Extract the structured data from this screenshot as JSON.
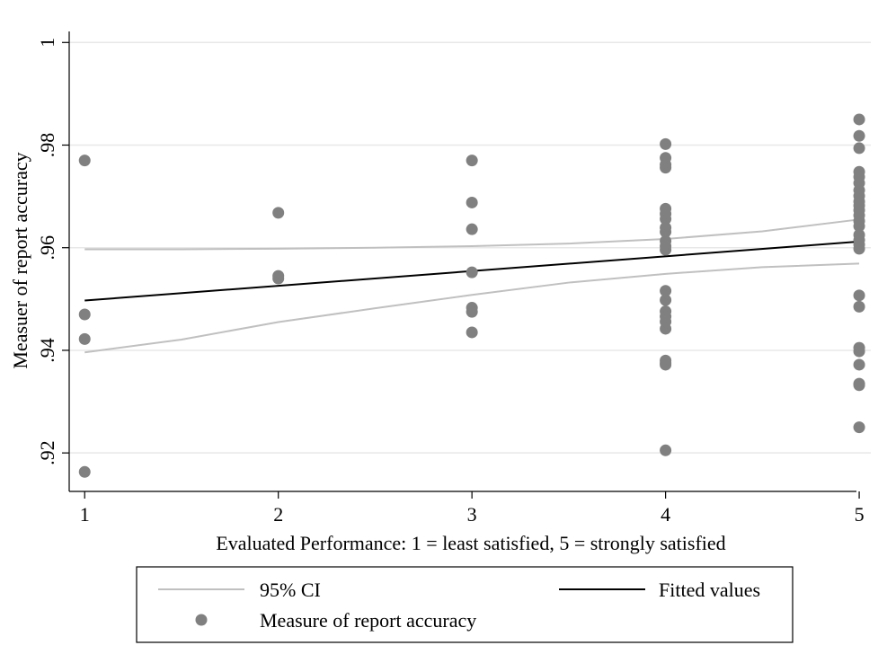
{
  "chart_data": {
    "type": "scatter",
    "xlabel": "Evaluated Performance: 1 =  least satisfied, 5 = strongly satisfied",
    "ylabel": "Measuer of report accuracy",
    "xlim": [
      0.92,
      5.06
    ],
    "ylim": [
      0.9125,
      1.0025
    ],
    "x_ticks": [
      1,
      2,
      3,
      4,
      5
    ],
    "y_ticks": [
      0.92,
      0.94,
      0.96,
      0.98,
      1
    ],
    "x_tick_labels": [
      "1",
      "2",
      "3",
      "4",
      "5"
    ],
    "y_tick_labels": [
      ".92",
      ".94",
      ".96",
      ".98",
      "1"
    ],
    "grid": true,
    "legend_position": "bottom",
    "series": [
      {
        "name": "Measure of report accuracy",
        "kind": "scatter",
        "color": "#808080",
        "points": [
          [
            1,
            0.977
          ],
          [
            1,
            0.947
          ],
          [
            1,
            0.9422
          ],
          [
            1,
            0.9163
          ],
          [
            2,
            0.9668
          ],
          [
            2,
            0.9545
          ],
          [
            2,
            0.954
          ],
          [
            3,
            0.977
          ],
          [
            3,
            0.9688
          ],
          [
            3,
            0.9636
          ],
          [
            3,
            0.9552
          ],
          [
            3,
            0.9483
          ],
          [
            3,
            0.9475
          ],
          [
            3,
            0.9435
          ],
          [
            4,
            0.9802
          ],
          [
            4,
            0.9775
          ],
          [
            4,
            0.9762
          ],
          [
            4,
            0.9756
          ],
          [
            4,
            0.9676
          ],
          [
            4,
            0.9666
          ],
          [
            4,
            0.9656
          ],
          [
            4,
            0.9639
          ],
          [
            4,
            0.9631
          ],
          [
            4,
            0.9613
          ],
          [
            4,
            0.9603
          ],
          [
            4,
            0.9596
          ],
          [
            4,
            0.9516
          ],
          [
            4,
            0.9498
          ],
          [
            4,
            0.9476
          ],
          [
            4,
            0.9466
          ],
          [
            4,
            0.9456
          ],
          [
            4,
            0.9442
          ],
          [
            4,
            0.938
          ],
          [
            4,
            0.9375
          ],
          [
            4,
            0.9372
          ],
          [
            4,
            0.9205
          ],
          [
            5,
            0.985
          ],
          [
            5,
            0.9818
          ],
          [
            5,
            0.9794
          ],
          [
            5,
            0.9748
          ],
          [
            5,
            0.9738
          ],
          [
            5,
            0.9726
          ],
          [
            5,
            0.9712
          ],
          [
            5,
            0.9701
          ],
          [
            5,
            0.969
          ],
          [
            5,
            0.9682
          ],
          [
            5,
            0.9673
          ],
          [
            5,
            0.9663
          ],
          [
            5,
            0.9652
          ],
          [
            5,
            0.9642
          ],
          [
            5,
            0.9625
          ],
          [
            5,
            0.9615
          ],
          [
            5,
            0.9606
          ],
          [
            5,
            0.9598
          ],
          [
            5,
            0.9507
          ],
          [
            5,
            0.9485
          ],
          [
            5,
            0.9405
          ],
          [
            5,
            0.9398
          ],
          [
            5,
            0.9372
          ],
          [
            5,
            0.9335
          ],
          [
            5,
            0.9332
          ],
          [
            5,
            0.925
          ]
        ]
      },
      {
        "name": "Fitted values",
        "kind": "line",
        "color": "#000000",
        "x": [
          1,
          5
        ],
        "values": [
          0.9497,
          0.9612
        ]
      },
      {
        "name": "95% CI",
        "kind": "band",
        "color": "#c0c0c0",
        "x": [
          1,
          1.5,
          2,
          2.5,
          3,
          3.5,
          4,
          4.5,
          5
        ],
        "upper": [
          0.9597,
          0.9597,
          0.9598,
          0.96,
          0.9603,
          0.9608,
          0.9617,
          0.9632,
          0.9655
        ],
        "lower": [
          0.9396,
          0.9421,
          0.9455,
          0.9482,
          0.9508,
          0.9532,
          0.9549,
          0.9562,
          0.9569
        ]
      }
    ]
  },
  "legend": {
    "ci_label": "95% CI",
    "fitted_label": "Fitted values",
    "points_label": "Measure of report accuracy"
  }
}
